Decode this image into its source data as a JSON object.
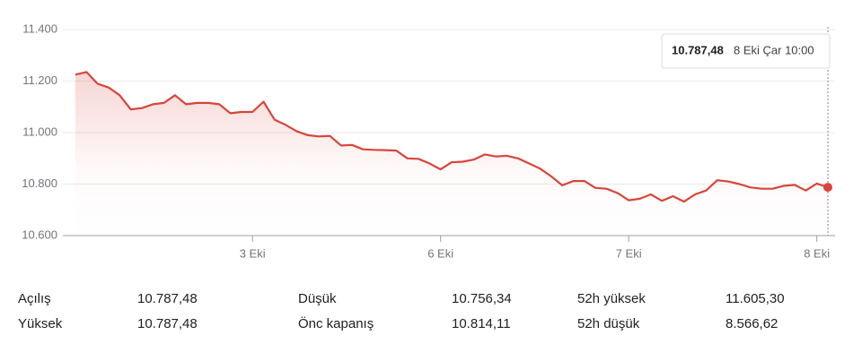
{
  "chart_data": {
    "type": "line",
    "categories": [
      null,
      null,
      null,
      null,
      null,
      null,
      null,
      null,
      null,
      null,
      null,
      null,
      null,
      null,
      null,
      null,
      "3 Eki",
      null,
      null,
      null,
      null,
      null,
      null,
      null,
      null,
      null,
      null,
      null,
      null,
      null,
      null,
      null,
      null,
      "6 Eki",
      null,
      null,
      null,
      null,
      null,
      null,
      null,
      null,
      null,
      null,
      null,
      null,
      null,
      null,
      null,
      null,
      "7 Eki",
      null,
      null,
      null,
      null,
      null,
      null,
      null,
      null,
      null,
      null,
      null,
      null,
      null,
      null,
      null,
      null,
      "8 Eki",
      null
    ],
    "series": [
      {
        "color": "#d9453a",
        "values": [
          11225,
          11235,
          11190,
          11175,
          11145,
          11090,
          11095,
          11110,
          11115,
          11145,
          11110,
          11115,
          11115,
          11110,
          11075,
          11080,
          11080,
          11120,
          11050,
          11030,
          11005,
          10990,
          10985,
          10987,
          10950,
          10952,
          10935,
          10933,
          10932,
          10930,
          10900,
          10898,
          10880,
          10857,
          10885,
          10887,
          10895,
          10915,
          10907,
          10910,
          10900,
          10880,
          10860,
          10830,
          10795,
          10812,
          10812,
          10785,
          10782,
          10765,
          10737,
          10743,
          10760,
          10735,
          10753,
          10732,
          10760,
          10775,
          10815,
          10810,
          10800,
          10787,
          10782,
          10782,
          10793,
          10797,
          10775,
          10802,
          10787.48
        ]
      }
    ],
    "ylim": [
      10600,
      11400
    ],
    "yticks": [
      {
        "value": 10600,
        "label": "10.600"
      },
      {
        "value": 10800,
        "label": "10.800"
      },
      {
        "value": 11000,
        "label": "11.000"
      },
      {
        "value": 11200,
        "label": "11.200"
      },
      {
        "value": 11400,
        "label": "11.400"
      }
    ],
    "grid": true,
    "tooltip": {
      "label": "10.787,48",
      "time": "8 Eki Çar 10:00"
    }
  },
  "stats": [
    [
      "Açılış",
      "10.787,48",
      "Düşük",
      "10.756,34",
      "52h yüksek",
      "11.605,30"
    ],
    [
      "Yüksek",
      "10.787,48",
      "Önc kapanış",
      "10.814,11",
      "52h düşük",
      "8.566,62"
    ]
  ]
}
